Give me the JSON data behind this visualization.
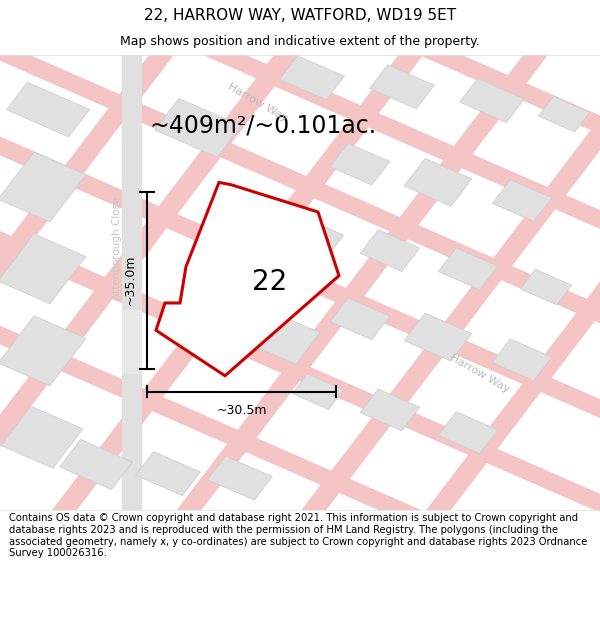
{
  "title": "22, HARROW WAY, WATFORD, WD19 5ET",
  "subtitle": "Map shows position and indicative extent of the property.",
  "area_text": "~409m²/~0.101ac.",
  "label_22": "22",
  "dim_width": "~30.5m",
  "dim_height": "~35.0m",
  "footer": "Contains OS data © Crown copyright and database right 2021. This information is subject to Crown copyright and database rights 2023 and is reproduced with the permission of HM Land Registry. The polygons (including the associated geometry, namely x, y co-ordinates) are subject to Crown copyright and database rights 2023 Ordnance Survey 100026316.",
  "map_bg": "#ffffff",
  "road_pink": "#f5c5c5",
  "road_pink2": "#f0d0d0",
  "building_fill": "#e0e0e0",
  "building_edge": "#cccccc",
  "prop_fill": "#ffffff",
  "prop_edge": "#cc0000",
  "road_label_color": "#bbbbbb",
  "attenborough_color": "#c8c8c8",
  "title_fontsize": 11,
  "subtitle_fontsize": 9,
  "footer_fontsize": 7.2,
  "area_fontsize": 17,
  "label_fontsize": 20,
  "road_label_fontsize": 8
}
